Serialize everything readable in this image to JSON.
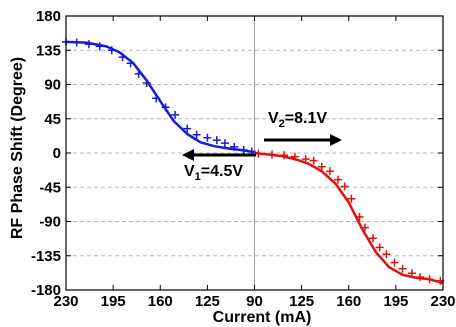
{
  "chart_data": {
    "type": "line",
    "xlabel": "Current (mA)",
    "ylabel": "RF Phase Shift (Degree)",
    "x_tick_labels": [
      "230",
      "195",
      "160",
      "125",
      "90",
      "125",
      "160",
      "195",
      "230"
    ],
    "y_ticks": [
      180,
      135,
      90,
      45,
      0,
      -45,
      -90,
      -135,
      -180
    ],
    "y_tick_labels": [
      "180",
      "135",
      "90",
      "45",
      "0",
      "-45",
      "-90",
      "-135",
      "-180"
    ],
    "ylim": [
      -180,
      180
    ],
    "grid": "horizontal dashed lines, vertical line at center",
    "colors": {
      "left": "#1a1adc",
      "right": "#e01010"
    },
    "series": [
      {
        "line": [
          [
            230,
            146
          ],
          [
            215,
            145
          ],
          [
            200,
            140
          ],
          [
            190,
            132
          ],
          [
            180,
            118
          ],
          [
            170,
            95
          ],
          [
            160,
            68
          ],
          [
            150,
            42
          ],
          [
            140,
            25
          ],
          [
            130,
            14
          ],
          [
            120,
            9
          ],
          [
            110,
            6
          ],
          [
            100,
            4
          ],
          [
            90,
            1
          ]
        ],
        "markers": [
          [
            230,
            146
          ],
          [
            222,
            145
          ],
          [
            213,
            143
          ],
          [
            205,
            140
          ],
          [
            196,
            135
          ],
          [
            188,
            126
          ],
          [
            182,
            118
          ],
          [
            176,
            104
          ],
          [
            170,
            92
          ],
          [
            163,
            72
          ],
          [
            156,
            60
          ],
          [
            149,
            50
          ],
          [
            140,
            32
          ],
          [
            133,
            24
          ],
          [
            125,
            20
          ],
          [
            118,
            17
          ],
          [
            112,
            13
          ],
          [
            105,
            8
          ],
          [
            98,
            4
          ],
          [
            92,
            2
          ]
        ]
      },
      {
        "line": [
          [
            90,
            0
          ],
          [
            100,
            -2
          ],
          [
            110,
            -4
          ],
          [
            120,
            -8
          ],
          [
            130,
            -14
          ],
          [
            140,
            -24
          ],
          [
            150,
            -40
          ],
          [
            160,
            -65
          ],
          [
            170,
            -100
          ],
          [
            180,
            -130
          ],
          [
            190,
            -150
          ],
          [
            200,
            -160
          ],
          [
            210,
            -164
          ],
          [
            220,
            -166
          ],
          [
            230,
            -171
          ]
        ],
        "markers": [
          [
            93,
            -1
          ],
          [
            103,
            -2
          ],
          [
            112,
            -3
          ],
          [
            120,
            -5
          ],
          [
            128,
            -8
          ],
          [
            134,
            -10
          ],
          [
            140,
            -18
          ],
          [
            146,
            -24
          ],
          [
            152,
            -35
          ],
          [
            157,
            -44
          ],
          [
            162,
            -60
          ],
          [
            168,
            -84
          ],
          [
            172,
            -98
          ],
          [
            178,
            -112
          ],
          [
            183,
            -124
          ],
          [
            188,
            -133
          ],
          [
            194,
            -144
          ],
          [
            200,
            -152
          ],
          [
            207,
            -158
          ],
          [
            213,
            -163
          ],
          [
            220,
            -166
          ],
          [
            228,
            -168
          ]
        ]
      }
    ],
    "annotations": [
      {
        "main": "V",
        "sub": "2",
        "rest": "=8.1V",
        "arrow": "right"
      },
      {
        "main": "V",
        "sub": "1",
        "rest": "=4.5V",
        "arrow": "left"
      }
    ]
  }
}
